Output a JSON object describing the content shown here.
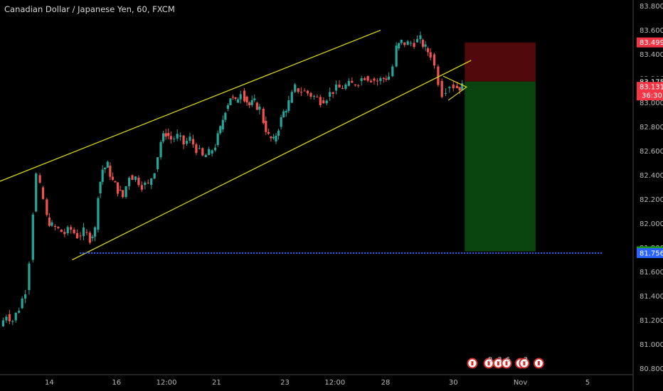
{
  "chart_data": {
    "type": "candlestick",
    "title": "Canadian Dollar / Japanese Yen, 60, FXCM",
    "ylim": [
      80.75,
      83.85
    ],
    "y_ticks": [
      {
        "value": 83.8,
        "label": "83.800"
      },
      {
        "value": 83.6,
        "label": "83.600"
      },
      {
        "value": 83.4,
        "label": "83.400"
      },
      {
        "value": 83.2,
        "label": "83.200"
      },
      {
        "value": 83.0,
        "label": "83.000"
      },
      {
        "value": 82.8,
        "label": "82.800"
      },
      {
        "value": 82.6,
        "label": "82.600"
      },
      {
        "value": 82.4,
        "label": "82.400"
      },
      {
        "value": 82.2,
        "label": "82.200"
      },
      {
        "value": 82.0,
        "label": "82.000"
      },
      {
        "value": 81.8,
        "label": "81.800"
      },
      {
        "value": 81.6,
        "label": "81.600"
      },
      {
        "value": 81.4,
        "label": "81.400"
      },
      {
        "value": 81.2,
        "label": "81.200"
      },
      {
        "value": 81.0,
        "label": "81.000"
      },
      {
        "value": 80.8,
        "label": "80.800"
      }
    ],
    "x_ticks": [
      {
        "pos": 0.078,
        "label": "14"
      },
      {
        "pos": 0.184,
        "label": "16"
      },
      {
        "pos": 0.263,
        "label": "12:00"
      },
      {
        "pos": 0.342,
        "label": "21"
      },
      {
        "pos": 0.45,
        "label": "23"
      },
      {
        "pos": 0.529,
        "label": "12:00"
      },
      {
        "pos": 0.609,
        "label": "28"
      },
      {
        "pos": 0.716,
        "label": "30"
      },
      {
        "pos": 0.822,
        "label": "Nov"
      },
      {
        "pos": 0.928,
        "label": "5"
      }
    ],
    "price_tags": [
      {
        "value": 83.499,
        "label": "83.499",
        "color": "#f23645"
      },
      {
        "value": 83.175,
        "label": "83.175",
        "color": "#000000"
      },
      {
        "value": 83.131,
        "label": "83.131",
        "color": "#f23645",
        "sub": "36:30"
      },
      {
        "value": 81.77,
        "label": "81.770",
        "color": "#1b9e1b"
      },
      {
        "value": 81.756,
        "label": "81.756",
        "color": "#2962ff"
      }
    ],
    "price_path": [
      [
        0.0,
        81.15
      ],
      [
        0.01,
        81.25
      ],
      [
        0.02,
        81.2
      ],
      [
        0.03,
        81.3
      ],
      [
        0.04,
        81.45
      ],
      [
        0.046,
        81.7
      ],
      [
        0.052,
        82.1
      ],
      [
        0.057,
        82.4
      ],
      [
        0.063,
        82.3
      ],
      [
        0.068,
        82.2
      ],
      [
        0.074,
        82.05
      ],
      [
        0.082,
        81.98
      ],
      [
        0.092,
        81.95
      ],
      [
        0.102,
        81.92
      ],
      [
        0.112,
        81.95
      ],
      [
        0.122,
        81.9
      ],
      [
        0.132,
        81.93
      ],
      [
        0.142,
        81.88
      ],
      [
        0.15,
        81.95
      ],
      [
        0.155,
        82.25
      ],
      [
        0.162,
        82.45
      ],
      [
        0.17,
        82.48
      ],
      [
        0.178,
        82.35
      ],
      [
        0.186,
        82.28
      ],
      [
        0.194,
        82.22
      ],
      [
        0.204,
        82.4
      ],
      [
        0.214,
        82.38
      ],
      [
        0.224,
        82.32
      ],
      [
        0.234,
        82.32
      ],
      [
        0.244,
        82.45
      ],
      [
        0.254,
        82.68
      ],
      [
        0.262,
        82.75
      ],
      [
        0.27,
        82.7
      ],
      [
        0.28,
        82.72
      ],
      [
        0.29,
        82.66
      ],
      [
        0.3,
        82.7
      ],
      [
        0.31,
        82.62
      ],
      [
        0.32,
        82.55
      ],
      [
        0.33,
        82.58
      ],
      [
        0.34,
        82.65
      ],
      [
        0.348,
        82.78
      ],
      [
        0.356,
        82.95
      ],
      [
        0.364,
        83.05
      ],
      [
        0.372,
        83.0
      ],
      [
        0.38,
        83.1
      ],
      [
        0.386,
        83.05
      ],
      [
        0.394,
        82.98
      ],
      [
        0.402,
        83.0
      ],
      [
        0.41,
        82.95
      ],
      [
        0.416,
        82.85
      ],
      [
        0.424,
        82.72
      ],
      [
        0.432,
        82.68
      ],
      [
        0.44,
        82.8
      ],
      [
        0.448,
        82.92
      ],
      [
        0.456,
        83.0
      ],
      [
        0.466,
        83.12
      ],
      [
        0.476,
        83.1
      ],
      [
        0.486,
        83.08
      ],
      [
        0.496,
        83.05
      ],
      [
        0.506,
        83.02
      ],
      [
        0.516,
        83.05
      ],
      [
        0.526,
        83.1
      ],
      [
        0.536,
        83.12
      ],
      [
        0.546,
        83.14
      ],
      [
        0.556,
        83.15
      ],
      [
        0.566,
        83.18
      ],
      [
        0.576,
        83.22
      ],
      [
        0.586,
        83.2
      ],
      [
        0.596,
        83.18
      ],
      [
        0.606,
        83.2
      ],
      [
        0.614,
        83.22
      ],
      [
        0.62,
        83.3
      ],
      [
        0.626,
        83.45
      ],
      [
        0.634,
        83.5
      ],
      [
        0.644,
        83.49
      ],
      [
        0.654,
        83.5
      ],
      [
        0.664,
        83.52
      ],
      [
        0.672,
        83.45
      ],
      [
        0.68,
        83.4
      ],
      [
        0.686,
        83.3
      ],
      [
        0.692,
        83.18
      ],
      [
        0.698,
        83.08
      ],
      [
        0.704,
        83.12
      ],
      [
        0.71,
        83.15
      ],
      [
        0.716,
        83.14
      ],
      [
        0.722,
        83.13
      ],
      [
        0.73,
        83.131
      ]
    ],
    "lines": [
      {
        "name": "channel-upper",
        "color": "#d4d419",
        "points": [
          [
            0.0,
            82.35
          ],
          [
            0.601,
            83.6
          ]
        ]
      },
      {
        "name": "channel-lower",
        "color": "#d4d419",
        "points": [
          [
            0.114,
            81.7
          ],
          [
            0.744,
            83.35
          ]
        ]
      },
      {
        "name": "support-level",
        "color": "#2962ff",
        "dashed": true,
        "points": [
          [
            0.126,
            81.756
          ],
          [
            0.952,
            81.756
          ]
        ]
      }
    ],
    "boxes": [
      {
        "name": "stop-zone",
        "color": "#5a0a0d",
        "x": [
          0.734,
          0.846
        ],
        "y": [
          83.175,
          83.499
        ]
      },
      {
        "name": "target-zone",
        "color": "#0b4d12",
        "x": [
          0.734,
          0.846
        ],
        "y": [
          81.77,
          83.175
        ]
      }
    ],
    "event_markers": [
      {
        "pos": 0.746,
        "label": ""
      },
      {
        "pos": 0.772,
        "label": "8"
      },
      {
        "pos": 0.787,
        "label": "3"
      },
      {
        "pos": 0.8,
        "label": "6"
      },
      {
        "pos": 0.822,
        "label": ""
      },
      {
        "pos": 0.828,
        "label": "3"
      },
      {
        "pos": 0.851,
        "label": ""
      }
    ]
  }
}
